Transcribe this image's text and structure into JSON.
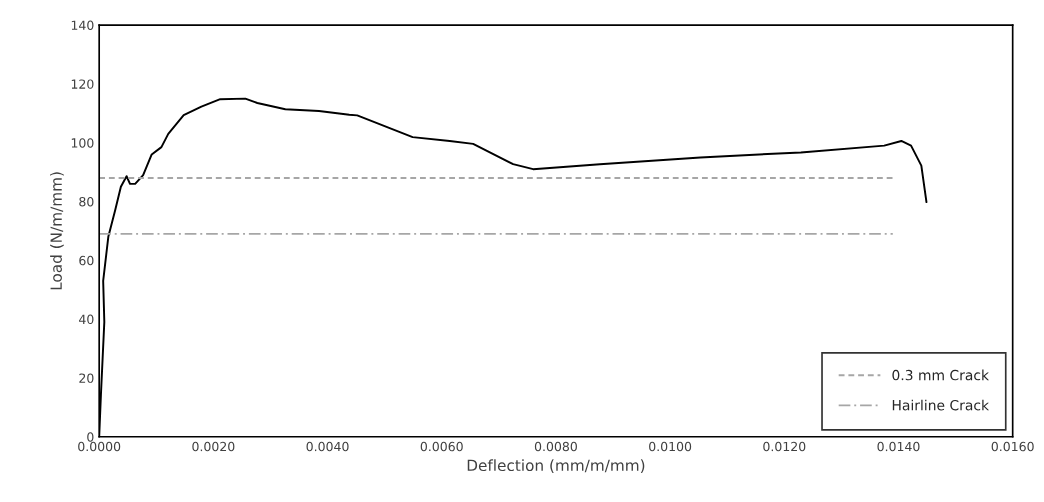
{
  "chart_data": {
    "type": "line",
    "xlabel": "Deflection (mm/m/mm)",
    "ylabel": "Load (N/m/mm)",
    "xlim": [
      0,
      0.016
    ],
    "ylim": [
      0,
      140
    ],
    "xticks": [
      {
        "value": 0,
        "label": "0.0000"
      },
      {
        "value": 0.002,
        "label": "0.0020"
      },
      {
        "value": 0.004,
        "label": "0.0040"
      },
      {
        "value": 0.006,
        "label": "0.0060"
      },
      {
        "value": 0.008,
        "label": "0.0080"
      },
      {
        "value": 0.01,
        "label": "0.0100"
      },
      {
        "value": 0.012,
        "label": "0.0120"
      },
      {
        "value": 0.014,
        "label": "0.0140"
      },
      {
        "value": 0.016,
        "label": "0.0160"
      }
    ],
    "yticks": [
      0,
      20,
      40,
      60,
      80,
      100,
      120,
      140
    ],
    "grid": false,
    "legend": "bottom right",
    "marker": "none",
    "series": [
      {
        "color": "#000000",
        "line_style": "solid",
        "x": [
          0,
          3e-05,
          9e-05,
          7e-05,
          0.00016,
          0.00028,
          0.00038,
          0.00048,
          0.00054,
          0.00063,
          0.00077,
          0.00092,
          0.00109,
          0.00121,
          0.00148,
          0.00179,
          0.00212,
          0.00256,
          0.00277,
          0.00326,
          0.00385,
          0.00438,
          0.00452,
          0.00549,
          0.00614,
          0.00655,
          0.00725,
          0.0076,
          0.00877,
          0.01053,
          0.01229,
          0.01375,
          0.01405,
          0.01422,
          0.0144,
          0.01449
        ],
        "values": [
          0,
          14,
          39,
          53,
          68,
          77,
          85,
          88.6,
          86,
          86,
          89,
          96,
          98.5,
          103,
          109.4,
          112.3,
          114.8,
          115,
          113.5,
          111.4,
          110.8,
          109.5,
          109.3,
          101.9,
          100.6,
          99.6,
          92.7,
          91,
          92.7,
          95,
          96.7,
          99,
          100.6,
          99,
          92.2,
          79.8
        ]
      },
      {
        "name": "0.3 mm Crack",
        "color": "#a6a6a6",
        "line_style": "dashed",
        "x": [
          0,
          0.0139
        ],
        "values": [
          88,
          88
        ]
      },
      {
        "name": "Hairline Crack",
        "color": "#a6a6a6",
        "line_style": "dashdot",
        "x": [
          0,
          0.0139
        ],
        "values": [
          69,
          69
        ]
      }
    ]
  }
}
